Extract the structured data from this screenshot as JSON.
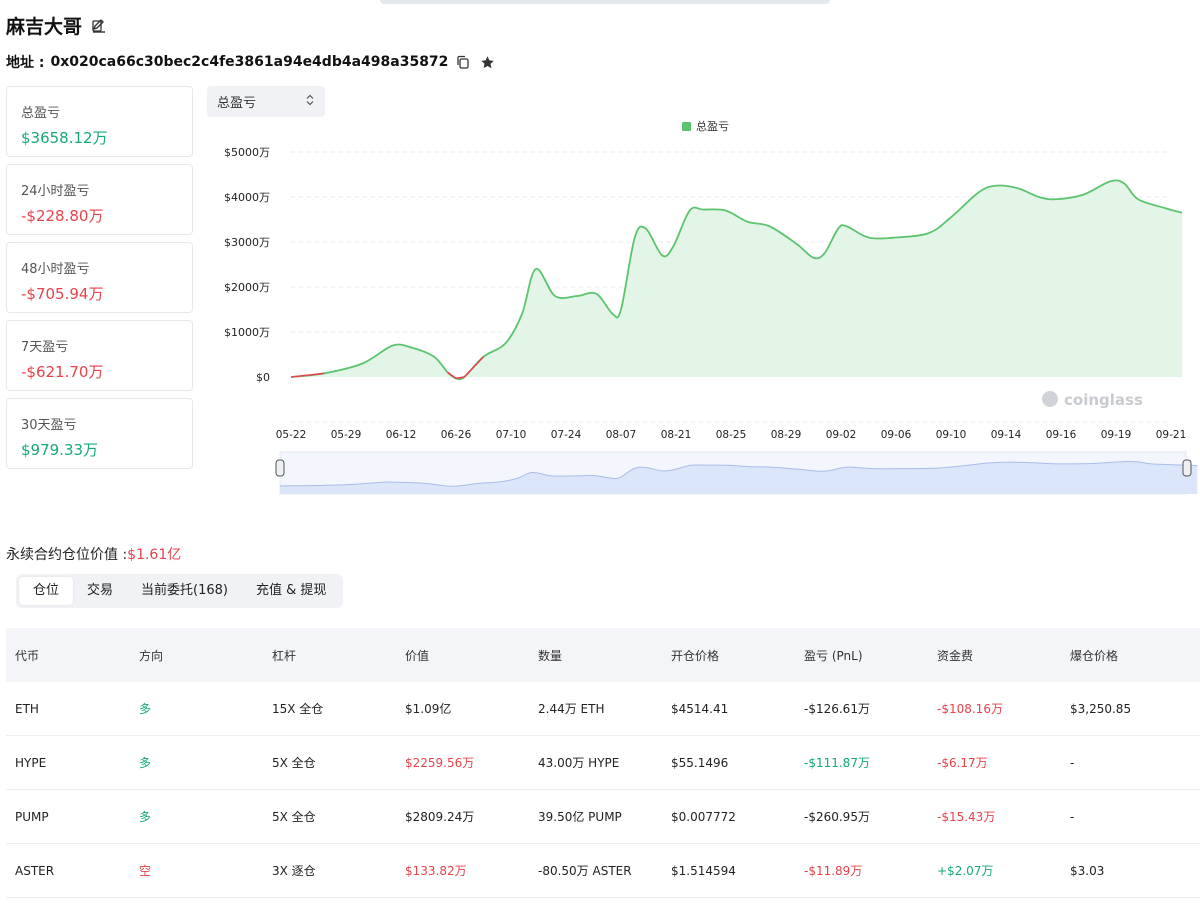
{
  "header": {
    "title": "麻吉大哥",
    "edit_icon": "edit-icon"
  },
  "address": {
    "label": "地址 :",
    "value": "0x020ca66c30bec2c4fe3861a94e4db4a498a35872",
    "copy_icon": "copy-icon",
    "star_icon": "star-icon"
  },
  "stats": [
    {
      "label": "总盈亏",
      "value": "$3658.12万",
      "tone": "pos"
    },
    {
      "label": "24小时盈亏",
      "value": "-$228.80万",
      "tone": "neg"
    },
    {
      "label": "48小时盈亏",
      "value": "-$705.94万",
      "tone": "neg"
    },
    {
      "label": "7天盈亏",
      "value": "-$621.70万",
      "tone": "neg"
    },
    {
      "label": "30天盈亏",
      "value": "$979.33万",
      "tone": "pos"
    }
  ],
  "selector": {
    "value": "总盈亏"
  },
  "chart_data": {
    "type": "area",
    "title": "",
    "legend": [
      "总盈亏"
    ],
    "legend_position": "top-center",
    "watermark": "coinglass",
    "x_labels": [
      "05-22",
      "05-29",
      "06-12",
      "06-26",
      "07-10",
      "07-24",
      "08-07",
      "08-21",
      "08-25",
      "08-29",
      "09-02",
      "09-06",
      "09-10",
      "09-14",
      "09-16",
      "09-19",
      "09-21"
    ],
    "y_tick_labels": [
      "$0",
      "$1000万",
      "$2000万",
      "$3000万",
      "$4000万",
      "$5000万"
    ],
    "ylim": [
      0,
      5000
    ],
    "y_unit": "万 USD",
    "series": [
      {
        "name": "总盈亏",
        "color": "#5cc46e",
        "points": [
          [
            0,
            0
          ],
          [
            0.6,
            80
          ],
          [
            1.3,
            300
          ],
          [
            1.85,
            700
          ],
          [
            2.2,
            650
          ],
          [
            2.6,
            450
          ],
          [
            2.85,
            100
          ],
          [
            3.0,
            -30
          ],
          [
            3.15,
            0
          ],
          [
            3.5,
            450
          ],
          [
            3.9,
            750
          ],
          [
            4.2,
            1400
          ],
          [
            4.45,
            2400
          ],
          [
            4.8,
            1800
          ],
          [
            5.2,
            1800
          ],
          [
            5.55,
            1850
          ],
          [
            5.85,
            1400
          ],
          [
            6.0,
            1500
          ],
          [
            6.25,
            3100
          ],
          [
            6.45,
            3300
          ],
          [
            6.75,
            2700
          ],
          [
            6.95,
            2900
          ],
          [
            7.25,
            3700
          ],
          [
            7.5,
            3720
          ],
          [
            7.9,
            3700
          ],
          [
            8.3,
            3450
          ],
          [
            8.7,
            3350
          ],
          [
            9.2,
            2950
          ],
          [
            9.5,
            2650
          ],
          [
            9.7,
            2750
          ],
          [
            9.95,
            3300
          ],
          [
            10.1,
            3350
          ],
          [
            10.5,
            3100
          ],
          [
            11.0,
            3100
          ],
          [
            11.6,
            3200
          ],
          [
            12.0,
            3550
          ],
          [
            12.5,
            4100
          ],
          [
            12.8,
            4250
          ],
          [
            13.2,
            4200
          ],
          [
            13.6,
            4000
          ],
          [
            13.9,
            3950
          ],
          [
            14.4,
            4050
          ],
          [
            14.9,
            4350
          ],
          [
            15.15,
            4300
          ],
          [
            15.4,
            3950
          ],
          [
            15.9,
            3750
          ],
          [
            16.2,
            3650
          ]
        ]
      }
    ],
    "negative_color": "#e8424a",
    "area_fill": "#e3f5e6",
    "navigator": {
      "fill": "#dbe6fb",
      "line": "#a9bde8"
    }
  },
  "perp": {
    "label": "永续合约仓位价值 :",
    "value": "$1.61亿"
  },
  "tabs": [
    {
      "label": "仓位",
      "active": true
    },
    {
      "label": "交易",
      "active": false
    },
    {
      "label": "当前委托(168)",
      "active": false
    },
    {
      "label": "充值 & 提现",
      "active": false
    }
  ],
  "table": {
    "headers": [
      "代币",
      "方向",
      "杠杆",
      "价值",
      "数量",
      "开仓价格",
      "盈亏 (PnL)",
      "资金费",
      "爆仓价格"
    ],
    "rows": [
      {
        "cells": [
          "ETH",
          "多",
          "15X 全仓",
          "$1.09亿",
          "2.44万 ETH",
          "$4514.41",
          "-$126.61万",
          "-$108.16万",
          "$3,250.85"
        ],
        "tones": [
          "",
          "pos",
          "",
          "",
          "",
          "",
          "",
          "neg",
          ""
        ]
      },
      {
        "cells": [
          "HYPE",
          "多",
          "5X 全仓",
          "$2259.56万",
          "43.00万 HYPE",
          "$55.1496",
          "-$111.87万",
          "-$6.17万",
          "-"
        ],
        "tones": [
          "",
          "pos",
          "",
          "neg",
          "",
          "",
          "pos",
          "neg",
          ""
        ]
      },
      {
        "cells": [
          "PUMP",
          "多",
          "5X 全仓",
          "$2809.24万",
          "39.50亿 PUMP",
          "$0.007772",
          "-$260.95万",
          "-$15.43万",
          "-"
        ],
        "tones": [
          "",
          "pos",
          "",
          "",
          "",
          "",
          "",
          "neg",
          ""
        ]
      },
      {
        "cells": [
          "ASTER",
          "空",
          "3X 逐仓",
          "$133.82万",
          "-80.50万 ASTER",
          "$1.514594",
          "-$11.89万",
          "+$2.07万",
          "$3.03"
        ],
        "tones": [
          "",
          "neg",
          "",
          "neg",
          "",
          "",
          "neg",
          "pos",
          ""
        ]
      }
    ]
  }
}
